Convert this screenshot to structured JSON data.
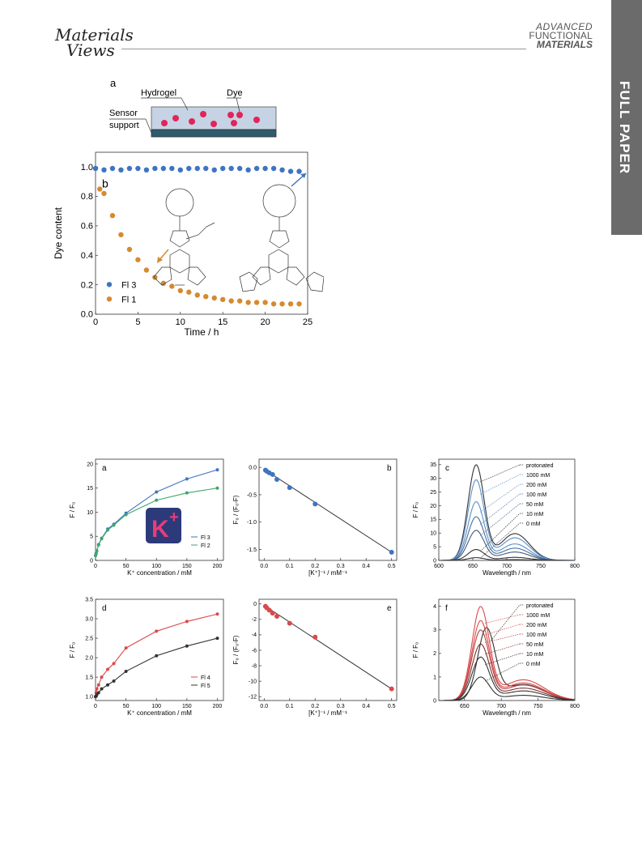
{
  "header": {
    "left_logo_line1": "Materials",
    "left_logo_line2": "Views",
    "right_logo": [
      "ADVANCED",
      "FUNCTIONAL",
      "MATERIALS"
    ],
    "side_tab": "FULL PAPER"
  },
  "figure1": {
    "panel_a": {
      "label": "a",
      "hydrogel": "Hydrogel",
      "dye": "Dye",
      "sensor": "Sensor",
      "support": "support"
    },
    "panel_b": {
      "label": "b",
      "chart_data": {
        "type": "scatter",
        "xlabel": "Time / h",
        "ylabel": "Dye content",
        "xlim": [
          0,
          25
        ],
        "ylim": [
          0,
          1.1
        ],
        "x_ticks": [
          0,
          5,
          10,
          15,
          20,
          25
        ],
        "y_ticks": [
          0.0,
          0.2,
          0.4,
          0.6,
          0.8,
          1.0
        ],
        "x_tick_labels": [
          "0",
          "5",
          "10",
          "15",
          "20",
          "25"
        ],
        "y_tick_labels": [
          "0.0",
          "0.2",
          "0.4",
          "0.6",
          "0.8",
          "1.0"
        ],
        "legend_position": "bottom-left",
        "series": [
          {
            "name": "Fl 3",
            "color": "#3f74c0",
            "x": [
              0,
              1,
              2,
              3,
              4,
              5,
              6,
              7,
              8,
              9,
              10,
              11,
              12,
              13,
              14,
              15,
              16,
              17,
              18,
              19,
              20,
              21,
              22,
              23,
              24
            ],
            "y": [
              0.99,
              0.98,
              0.99,
              0.98,
              0.99,
              0.99,
              0.98,
              0.99,
              0.99,
              0.99,
              0.98,
              0.99,
              0.99,
              0.99,
              0.98,
              0.99,
              0.99,
              0.99,
              0.98,
              0.99,
              0.99,
              0.99,
              0.98,
              0.97,
              0.97
            ]
          },
          {
            "name": "Fl 1",
            "color": "#d58a30",
            "x": [
              0.5,
              1,
              2,
              3,
              4,
              5,
              6,
              7,
              8,
              9,
              10,
              11,
              12,
              13,
              14,
              15,
              16,
              17,
              18,
              19,
              20,
              21,
              22,
              23,
              24
            ],
            "y": [
              0.85,
              0.82,
              0.67,
              0.54,
              0.44,
              0.37,
              0.3,
              0.25,
              0.21,
              0.19,
              0.16,
              0.15,
              0.13,
              0.12,
              0.11,
              0.1,
              0.09,
              0.09,
              0.08,
              0.08,
              0.08,
              0.07,
              0.07,
              0.07,
              0.07
            ]
          }
        ]
      }
    }
  },
  "figure2": {
    "chart_data": [
      {
        "panel": "a",
        "type": "line",
        "xlabel": "K⁺ concentration / mM",
        "ylabel": "F / F₀",
        "xlim": [
          0,
          210
        ],
        "ylim": [
          0,
          21
        ],
        "x_tick_labels": [
          "0",
          "50",
          "100",
          "150",
          "200"
        ],
        "y_tick_labels": [
          "0",
          "5",
          "10",
          "15",
          "20"
        ],
        "legend_position": "bottom-right",
        "series": [
          {
            "name": "Fl 3",
            "color": "#3f74c0",
            "x": [
              0,
              1,
              2,
              5,
              10,
              20,
              30,
              50,
              100,
              150,
              200
            ],
            "y": [
              1,
              1.5,
              2,
              3.3,
              4.6,
              6.5,
              7.5,
              9.8,
              14.2,
              16.9,
              18.8
            ]
          },
          {
            "name": "Fl 2",
            "color": "#3fa66a",
            "x": [
              0,
              1,
              2,
              5,
              10,
              20,
              30,
              50,
              100,
              150,
              200
            ],
            "y": [
              1,
              1.4,
              2,
              3.2,
              4.5,
              6.3,
              7.3,
              9.5,
              12.5,
              14.0,
              15.0
            ]
          }
        ]
      },
      {
        "panel": "b",
        "type": "scatter",
        "xlabel": "[K⁺]⁻¹ / mM⁻¹",
        "ylabel": "F₀ / (F₀-F)",
        "xlim": [
          -0.02,
          0.52
        ],
        "ylim": [
          -1.7,
          0.15
        ],
        "x_tick_labels": [
          "0.0",
          "0.1",
          "0.2",
          "0.3",
          "0.4",
          "0.5"
        ],
        "y_tick_labels": [
          "0.0",
          "-0.5",
          "-1.0",
          "-1.5"
        ],
        "series": [
          {
            "name": "",
            "color": "#3f74c0",
            "x": [
              0.005,
              0.01,
              0.02,
              0.033,
              0.05,
              0.1,
              0.2,
              0.5
            ],
            "y": [
              -0.05,
              -0.07,
              -0.1,
              -0.13,
              -0.22,
              -0.37,
              -0.67,
              -1.55
            ]
          }
        ]
      },
      {
        "panel": "c",
        "type": "line",
        "xlabel": "Wavelength / nm",
        "ylabel": "F / F₀",
        "xlim": [
          600,
          800
        ],
        "ylim": [
          0,
          37
        ],
        "x_tick_labels": [
          "600",
          "650",
          "700",
          "750",
          "800"
        ],
        "y_tick_labels": [
          "0",
          "5",
          "10",
          "15",
          "20",
          "25",
          "30",
          "35"
        ],
        "peak_wavelength": 655,
        "shoulder_wavelength": 712,
        "legend_position": "top-right",
        "series": [
          {
            "name": "protonated",
            "color": "#333333",
            "peak": 35
          },
          {
            "name": "1000 mM",
            "color": "#5b8fc7",
            "peak": 29.5
          },
          {
            "name": "200 mM",
            "color": "#5b8fc7",
            "peak": 21.5
          },
          {
            "name": "100 mM",
            "color": "#4a6f9c",
            "peak": 16
          },
          {
            "name": "50 mM",
            "color": "#3f5c80",
            "peak": 11
          },
          {
            "name": "10 mM",
            "color": "#333333",
            "peak": 4
          },
          {
            "name": "0 mM",
            "color": "#333333",
            "peak": 1
          }
        ]
      },
      {
        "panel": "d",
        "type": "line",
        "xlabel": "K⁺ concentration / mM",
        "ylabel": "F / F₀",
        "xlim": [
          0,
          210
        ],
        "ylim": [
          0.9,
          3.5
        ],
        "x_tick_labels": [
          "0",
          "50",
          "100",
          "150",
          "200"
        ],
        "y_tick_labels": [
          "1.0",
          "1.5",
          "2.0",
          "2.5",
          "3.0",
          "3.5"
        ],
        "legend_position": "bottom-right",
        "series": [
          {
            "name": "Fl 4",
            "color": "#d94a4a",
            "x": [
              0,
              1,
              2,
              5,
              10,
              20,
              30,
              50,
              100,
              150,
              200
            ],
            "y": [
              1,
              1.1,
              1.2,
              1.3,
              1.5,
              1.7,
              1.85,
              2.25,
              2.68,
              2.93,
              3.12
            ]
          },
          {
            "name": "Fl 5",
            "color": "#333333",
            "x": [
              0,
              1,
              2,
              5,
              10,
              20,
              30,
              50,
              100,
              150,
              200
            ],
            "y": [
              1,
              1.02,
              1.05,
              1.1,
              1.2,
              1.3,
              1.4,
              1.65,
              2.05,
              2.3,
              2.5
            ]
          }
        ]
      },
      {
        "panel": "e",
        "type": "scatter",
        "xlabel": "[K⁺]⁻¹ / mM⁻¹",
        "ylabel": "F₀ / (F₀-F)",
        "xlim": [
          -0.02,
          0.52
        ],
        "ylim": [
          -12.5,
          0.6
        ],
        "x_tick_labels": [
          "0.0",
          "0.1",
          "0.2",
          "0.3",
          "0.4",
          "0.5"
        ],
        "y_tick_labels": [
          "0",
          "-2",
          "-4",
          "-6",
          "-8",
          "-10",
          "-12"
        ],
        "series": [
          {
            "name": "",
            "color": "#d94a4a",
            "x": [
              0.005,
              0.01,
              0.02,
              0.033,
              0.05,
              0.1,
              0.2,
              0.5
            ],
            "y": [
              -0.3,
              -0.5,
              -0.8,
              -1.2,
              -1.6,
              -2.5,
              -4.3,
              -11
            ]
          }
        ]
      },
      {
        "panel": "f",
        "type": "line",
        "xlabel": "Wavelength / nm",
        "ylabel": "F / F₀",
        "xlim": [
          615,
          800
        ],
        "ylim": [
          0,
          4.3
        ],
        "x_tick_labels": [
          "650",
          "700",
          "750",
          "800"
        ],
        "y_tick_labels": [
          "0",
          "1",
          "2",
          "3",
          "4"
        ],
        "peak_wavelength": 672,
        "legend_position": "top-right",
        "series": [
          {
            "name": "protonated",
            "color": "#333333",
            "peak": 3.1,
            "shift": 8
          },
          {
            "name": "1000 mM",
            "color": "#d94a4a",
            "peak": 4.0
          },
          {
            "name": "200 mM",
            "color": "#d94a4a",
            "peak": 3.4
          },
          {
            "name": "100 mM",
            "color": "#b84040",
            "peak": 3.0
          },
          {
            "name": "50 mM",
            "color": "#7a3030",
            "peak": 2.4
          },
          {
            "name": "10 mM",
            "color": "#333333",
            "peak": 1.85
          },
          {
            "name": "0 mM",
            "color": "#333333",
            "peak": 1.0
          }
        ]
      }
    ],
    "inset_logo": {
      "text": "K",
      "superscript": "+",
      "bg": "#2c3a7a",
      "fg": "#e83c7a"
    }
  },
  "colors": {
    "blue": "#3f74c0",
    "orange": "#d58a30",
    "green": "#3fa66a",
    "red": "#d94a4a",
    "dark": "#333333"
  }
}
